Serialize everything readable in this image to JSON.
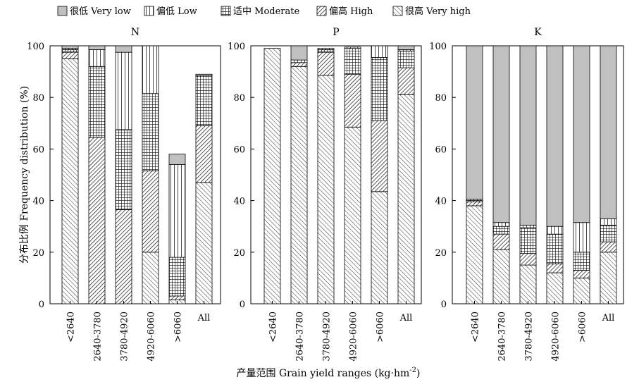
{
  "legend": [
    {
      "label": "很低 Very low",
      "pattern": "solid-gray"
    },
    {
      "label": "偏低 Low",
      "pattern": "vertical-lines"
    },
    {
      "label": "适中 Moderate",
      "pattern": "grid"
    },
    {
      "label": "偏高 High",
      "pattern": "dense-diagonal"
    },
    {
      "label": "很高 Very high",
      "pattern": "wide-diagonal"
    }
  ],
  "xlabel_html": "产量范围 Grain yield ranges (kg·hm",
  "xlabel_sup": "-2",
  "xlabel_close": ")",
  "ylabel": "分布比例 Frequency distribution (%)",
  "colors": {
    "very_low": "#c0c0c0",
    "stroke": "#000000"
  },
  "chart_data": [
    {
      "type": "bar",
      "stacked": true,
      "title": "N",
      "categories": [
        "<2640",
        "2640-3780",
        "3780-4920",
        "4920-6060",
        ">6060",
        "All"
      ],
      "ylim": [
        0,
        100
      ],
      "yticks": [
        0,
        20,
        40,
        60,
        80,
        100
      ],
      "series": [
        {
          "name": "很高 Very high",
          "values": [
            95,
            0,
            0,
            20,
            1.5,
            47
          ]
        },
        {
          "name": "偏高 High",
          "values": [
            2.5,
            64.5,
            36.5,
            31.5,
            1.5,
            22
          ]
        },
        {
          "name": "适中 Moderate",
          "values": [
            1,
            27.5,
            31,
            30,
            15,
            19.5
          ]
        },
        {
          "name": "偏低 Low",
          "values": [
            0.5,
            6.5,
            30,
            18.5,
            36,
            0
          ]
        },
        {
          "name": "很低 Very low",
          "values": [
            1,
            1.5,
            2.5,
            0,
            4,
            0.5
          ]
        }
      ]
    },
    {
      "type": "bar",
      "stacked": true,
      "title": "P",
      "categories": [
        "<2640",
        "2640-3780",
        "3780-4920",
        "4920-6060",
        ">6060",
        "All"
      ],
      "ylim": [
        0,
        100
      ],
      "yticks": [
        0,
        20,
        40,
        60,
        80,
        100
      ],
      "series": [
        {
          "name": "很高 Very high",
          "values": [
            99,
            92,
            88.5,
            68.5,
            43.5,
            81
          ]
        },
        {
          "name": "偏高 High",
          "values": [
            0,
            1.5,
            9,
            20.5,
            27.5,
            10.5
          ]
        },
        {
          "name": "适中 Moderate",
          "values": [
            0,
            0,
            1,
            10,
            24.5,
            6.5
          ]
        },
        {
          "name": "偏低 Low",
          "values": [
            0,
            1,
            0.5,
            0.5,
            4.5,
            0.5
          ]
        },
        {
          "name": "很低 Very low",
          "values": [
            0,
            5.5,
            0,
            0,
            0,
            1.5
          ]
        }
      ]
    },
    {
      "type": "bar",
      "stacked": true,
      "title": "K",
      "categories": [
        "<2640",
        "2640-3780",
        "3780-4920",
        "4920-6060",
        ">6060",
        "All"
      ],
      "ylim": [
        0,
        100
      ],
      "yticks": [
        0,
        20,
        40,
        60,
        80,
        100
      ],
      "series": [
        {
          "name": "很高 Very high",
          "values": [
            38,
            21,
            15,
            12,
            10,
            20
          ]
        },
        {
          "name": "偏高 High",
          "values": [
            1.5,
            6,
            4.5,
            3.5,
            3,
            4
          ]
        },
        {
          "name": "适中 Moderate",
          "values": [
            0.5,
            3,
            10,
            11.5,
            7,
            6.5
          ]
        },
        {
          "name": "偏低 Low",
          "values": [
            0.5,
            1.5,
            1,
            3,
            11.5,
            2.5
          ]
        },
        {
          "name": "很低 Very low",
          "values": [
            59.5,
            68.5,
            69.5,
            70,
            68.5,
            67
          ]
        }
      ]
    }
  ]
}
